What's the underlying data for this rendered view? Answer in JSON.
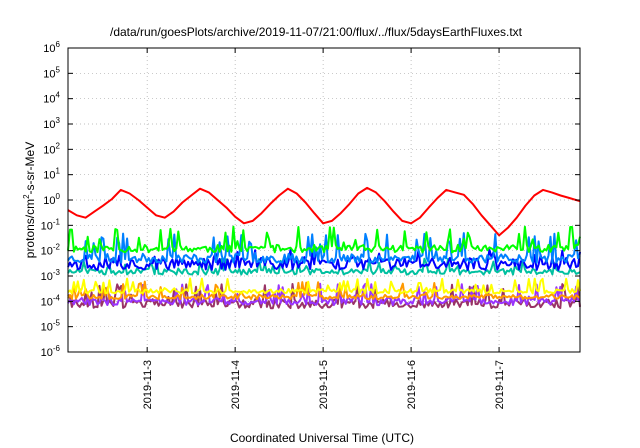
{
  "chart_data": {
    "type": "line",
    "title": "/data/run/goesPlots/archive/2019-11-07/21:00/flux/../flux/5daysEarthFluxes.txt",
    "xlabel": "Coordinated Universal Time (UTC)",
    "ylabel": {
      "pre": "protons/cm",
      "sup": "2",
      "post": "-s-sr-MeV"
    },
    "x_range_days": [
      2.1,
      7.92
    ],
    "x_ticks": [
      {
        "day": 3,
        "label": "2019-11-3"
      },
      {
        "day": 4,
        "label": "2019-11-4"
      },
      {
        "day": 5,
        "label": "2019-11-5"
      },
      {
        "day": 6,
        "label": "2019-11-6"
      },
      {
        "day": 7,
        "label": "2019-11-7"
      }
    ],
    "y_scale": "log",
    "y_range_exp": [
      -6,
      6
    ],
    "y_ticks": [
      {
        "exp": 6,
        "base": "10",
        "sup": "6"
      },
      {
        "exp": 5,
        "base": "10",
        "sup": "5"
      },
      {
        "exp": 4,
        "base": "10",
        "sup": "4"
      },
      {
        "exp": 3,
        "base": "10",
        "sup": "3"
      },
      {
        "exp": 2,
        "base": "10",
        "sup": "2"
      },
      {
        "exp": 1,
        "base": "10",
        "sup": "1"
      },
      {
        "exp": 0,
        "base": "10",
        "sup": "0"
      },
      {
        "exp": -1,
        "base": "10",
        "sup": "-1"
      },
      {
        "exp": -2,
        "base": "10",
        "sup": "-2"
      },
      {
        "exp": -3,
        "base": "10",
        "sup": "-3"
      },
      {
        "exp": -4,
        "base": "10",
        "sup": "-4"
      },
      {
        "exp": -5,
        "base": "10",
        "sup": "-5"
      },
      {
        "exp": -6,
        "base": "10",
        "sup": "-6"
      }
    ],
    "grid": true,
    "series": [
      {
        "color": "#ff0000",
        "x": [
          2.1,
          2.2,
          2.3,
          2.4,
          2.5,
          2.6,
          2.7,
          2.8,
          2.9,
          3.0,
          3.1,
          3.2,
          3.3,
          3.4,
          3.5,
          3.6,
          3.7,
          3.8,
          3.9,
          4.0,
          4.1,
          4.2,
          4.3,
          4.4,
          4.5,
          4.6,
          4.7,
          4.8,
          4.9,
          5.0,
          5.1,
          5.2,
          5.3,
          5.4,
          5.5,
          5.6,
          5.7,
          5.8,
          5.9,
          6.0,
          6.1,
          6.2,
          6.3,
          6.4,
          6.5,
          6.6,
          6.7,
          6.8,
          6.9,
          7.0,
          7.1,
          7.2,
          7.3,
          7.4,
          7.5,
          7.6,
          7.7,
          7.8,
          7.92
        ],
        "y": [
          0.4,
          0.25,
          0.2,
          0.35,
          0.6,
          1.1,
          2.5,
          1.8,
          1.0,
          0.5,
          0.25,
          0.2,
          0.35,
          0.8,
          1.5,
          2.8,
          2.0,
          1.0,
          0.5,
          0.22,
          0.12,
          0.15,
          0.3,
          0.7,
          1.5,
          2.8,
          1.8,
          0.8,
          0.3,
          0.12,
          0.15,
          0.3,
          0.7,
          1.8,
          3.0,
          2.0,
          0.9,
          0.35,
          0.15,
          0.12,
          0.2,
          0.5,
          1.2,
          2.5,
          2.0,
          1.6,
          0.7,
          0.25,
          0.1,
          0.04,
          0.08,
          0.2,
          0.6,
          1.5,
          2.5,
          2.0,
          1.5,
          1.2,
          0.9
        ]
      },
      {
        "color": "#00ff00",
        "base": 0.012,
        "spike_max": 0.09,
        "noise": 0.5,
        "seed": 11
      },
      {
        "color": "#0080ff",
        "base": 0.005,
        "spike_max": 0.05,
        "noise": 0.6,
        "seed": 23
      },
      {
        "color": "#0000ff",
        "base": 0.003,
        "spike_max": 0.012,
        "noise": 0.8,
        "seed": 37
      },
      {
        "color": "#00c0a0",
        "base": 0.0015,
        "spike_max": 0.005,
        "noise": 0.4,
        "seed": 51
      },
      {
        "color": "#ffff00",
        "base": 0.00025,
        "spike_max": 0.0008,
        "noise": 0.3,
        "seed": 67
      },
      {
        "color": "#ff9900",
        "base": 0.00015,
        "spike_max": 0.0006,
        "noise": 0.3,
        "seed": 79
      },
      {
        "color": "#9933ff",
        "base": 0.0001,
        "spike_max": 0.0005,
        "noise": 0.5,
        "seed": 83
      },
      {
        "color": "#993366",
        "base": 8e-05,
        "spike_max": 0.0005,
        "noise": 0.6,
        "seed": 97
      }
    ]
  }
}
